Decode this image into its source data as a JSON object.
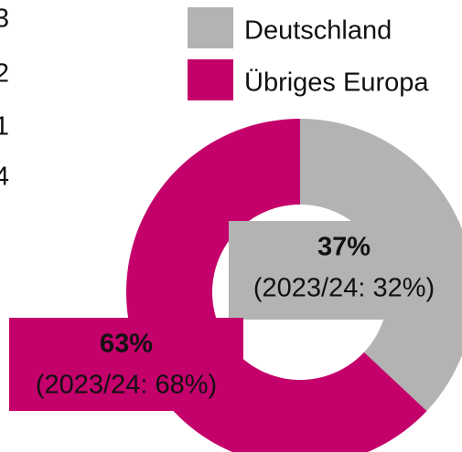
{
  "chart_data": {
    "type": "donut",
    "categories": [
      "Deutschland",
      "Übriges Europa"
    ],
    "values": [
      37,
      63
    ],
    "value_labels": [
      "37%",
      "63%"
    ],
    "annotations": [
      "(2023/24: 32%)",
      "(2023/24: 68%)"
    ],
    "colors": [
      "#b3b3b3",
      "#c4006b"
    ]
  },
  "side_text": [
    "3",
    "2",
    "1",
    "4"
  ]
}
